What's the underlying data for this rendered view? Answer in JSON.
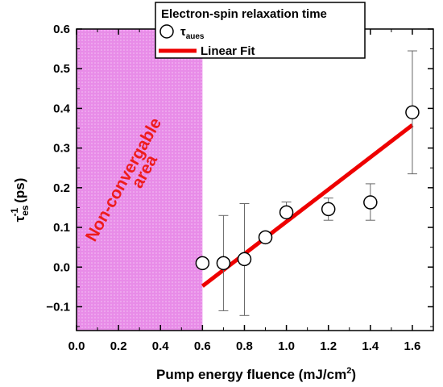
{
  "chart_data": {
    "type": "scatter",
    "xlabel": "Pump energy fluence (mJ/cm",
    "xlabel_sup": "2",
    "xlabel_end": ")",
    "ylabel_tau": "τ",
    "ylabel_sub": "es",
    "ylabel_sup": "-1",
    "ylabel_unit": "(ps)",
    "xlim": [
      0.0,
      1.7
    ],
    "ylim": [
      -0.16,
      0.6
    ],
    "xticks": [
      "0.0",
      "0.2",
      "0.4",
      "0.6",
      "0.8",
      "1.0",
      "1.2",
      "1.4",
      "1.6"
    ],
    "yticks": [
      "−0.1",
      "0.0",
      "0.1",
      "0.2",
      "0.3",
      "0.4",
      "0.5",
      "0.6"
    ],
    "grid": false,
    "legend": {
      "title": "Electron-spin relaxation time",
      "placement": "top-center",
      "entries": [
        {
          "label": "τ",
          "label_sub": "aues",
          "marker": "open-circle"
        },
        {
          "label": "Linear Fit",
          "marker": "red-line"
        }
      ]
    },
    "shaded_region": {
      "x_range": [
        0.0,
        0.6
      ],
      "label_line1": "Non-convergable",
      "label_line2": "area",
      "color": "#e88ce8"
    },
    "series": [
      {
        "name": "τaues",
        "x": [
          0.6,
          0.7,
          0.8,
          0.9,
          1.0,
          1.2,
          1.4,
          1.6
        ],
        "y": [
          0.01,
          0.01,
          0.02,
          0.075,
          0.138,
          0.146,
          0.163,
          0.39
        ],
        "err_low": [
          null,
          0.12,
          0.142,
          null,
          null,
          0.028,
          0.045,
          0.155
        ],
        "err_high": [
          null,
          0.12,
          0.14,
          null,
          0.026,
          0.028,
          0.047,
          0.155
        ]
      }
    ],
    "fit": {
      "name": "Linear Fit",
      "x": [
        0.6,
        1.6
      ],
      "y": [
        -0.048,
        0.358
      ],
      "color": "#ee0000"
    }
  }
}
